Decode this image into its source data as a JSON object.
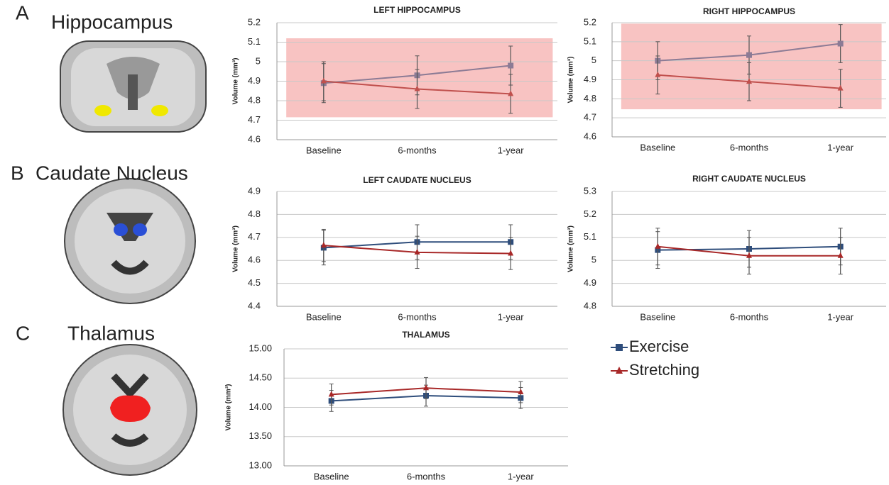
{
  "panels": [
    {
      "letter": "A",
      "title": "Hippocampus"
    },
    {
      "letter": "B",
      "title": "Caudate Nucleus"
    },
    {
      "letter": "C",
      "title": "Thalamus"
    }
  ],
  "legend": {
    "entries": [
      {
        "name": "Exercise",
        "color": "#2e4d7b",
        "marker": "square"
      },
      {
        "name": "Stretching",
        "color": "#a82828",
        "marker": "triangle"
      }
    ]
  },
  "chart_data": [
    {
      "type": "line",
      "title": "LEFT HIPPOCAMPUS",
      "y_label": "Volume (mm³)",
      "categories": [
        "Baseline",
        "6-months",
        "1-year"
      ],
      "series": [
        {
          "color": "#8c7b95",
          "marker": "square",
          "values": [
            4.89,
            4.93,
            4.98
          ],
          "errors": [
            0.1,
            0.1,
            0.1
          ]
        },
        {
          "color": "#c0504d",
          "marker": "triangle",
          "values": [
            4.9,
            4.86,
            4.835
          ],
          "errors": [
            0.1,
            0.1,
            0.1
          ]
        }
      ],
      "ylim": [
        4.6,
        5.2
      ],
      "yticks": [
        4.6,
        4.7,
        4.8,
        4.9,
        5,
        5.1,
        5.2
      ],
      "grid": true,
      "highlight": {
        "color": "#f7b9b7",
        "range": [
          4.715,
          5.12
        ]
      }
    },
    {
      "type": "line",
      "title": "RIGHT HIPPOCAMPUS",
      "y_label": "Volume (mm³)",
      "categories": [
        "Baseline",
        "6-months",
        "1-year"
      ],
      "series": [
        {
          "color": "#8c7b95",
          "marker": "square",
          "values": [
            5.0,
            5.03,
            5.09
          ],
          "errors": [
            0.1,
            0.1,
            0.1
          ]
        },
        {
          "color": "#c0504d",
          "marker": "triangle",
          "values": [
            4.925,
            4.89,
            4.855
          ],
          "errors": [
            0.1,
            0.1,
            0.1
          ]
        }
      ],
      "ylim": [
        4.6,
        5.2
      ],
      "yticks": [
        4.6,
        4.7,
        4.8,
        4.9,
        5,
        5.1,
        5.2
      ],
      "grid": true,
      "highlight": {
        "color": "#f7b9b7",
        "range": [
          4.745,
          5.195
        ]
      }
    },
    {
      "type": "line",
      "title": "LEFT CAUDATE NUCLEUS",
      "y_label": "Volume (mm³)",
      "categories": [
        "Baseline",
        "6-months",
        "1-year"
      ],
      "series": [
        {
          "color": "#2e4d7b",
          "marker": "square",
          "values": [
            4.655,
            4.68,
            4.68
          ],
          "errors": [
            0.075,
            0.075,
            0.075
          ]
        },
        {
          "color": "#a82828",
          "marker": "triangle",
          "values": [
            4.665,
            4.635,
            4.63
          ],
          "errors": [
            0.07,
            0.07,
            0.07
          ]
        }
      ],
      "ylim": [
        4.4,
        4.9
      ],
      "yticks": [
        4.4,
        4.5,
        4.6,
        4.7,
        4.8,
        4.9
      ],
      "grid": true
    },
    {
      "type": "line",
      "title": "RIGHT CAUDATE NUCLEUS",
      "y_label": "Volume (mm³)",
      "categories": [
        "Baseline",
        "6-months",
        "1-year"
      ],
      "series": [
        {
          "color": "#2e4d7b",
          "marker": "square",
          "values": [
            5.045,
            5.05,
            5.06
          ],
          "errors": [
            0.08,
            0.08,
            0.08
          ]
        },
        {
          "color": "#a82828",
          "marker": "triangle",
          "values": [
            5.06,
            5.02,
            5.02
          ],
          "errors": [
            0.08,
            0.08,
            0.08
          ]
        }
      ],
      "ylim": [
        4.8,
        5.3
      ],
      "yticks": [
        4.8,
        4.9,
        5,
        5.1,
        5.2,
        5.3
      ],
      "grid": true
    },
    {
      "type": "line",
      "title": "THALAMUS",
      "y_label": "Volume (mm³)",
      "categories": [
        "Baseline",
        "6-months",
        "1-year"
      ],
      "series": [
        {
          "color": "#2e4d7b",
          "marker": "square",
          "values": [
            14.11,
            14.2,
            14.16
          ],
          "errors": [
            0.18,
            0.18,
            0.18
          ]
        },
        {
          "color": "#a82828",
          "marker": "triangle",
          "values": [
            14.22,
            14.33,
            14.26
          ],
          "errors": [
            0.18,
            0.18,
            0.18
          ]
        }
      ],
      "ylim": [
        13,
        15
      ],
      "yticks": [
        {
          "value": 13,
          "label": "13.00"
        },
        {
          "value": 13.5,
          "label": "13.50"
        },
        {
          "value": 14,
          "label": "14.00"
        },
        {
          "value": 14.5,
          "label": "14.50"
        },
        {
          "value": 15,
          "label": "15.00"
        }
      ],
      "grid": true
    }
  ]
}
